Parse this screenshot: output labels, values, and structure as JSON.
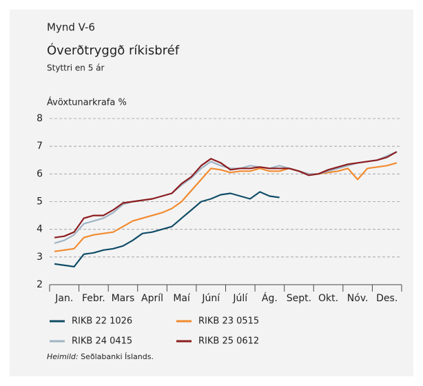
{
  "chart_data": {
    "type": "line",
    "kicker": "Mynd V-6",
    "title": "Óverðtryggð ríkisbréf",
    "subtitle": "Styttri en 5 ár",
    "y_label": "Ávöxtunarkrafa %",
    "source_label": "Heimild:",
    "source": "Seðlabanki Íslands.",
    "categories": [
      null,
      "Jan.",
      null,
      null,
      "Febr.",
      null,
      null,
      "Mars",
      null,
      null,
      "Apríl",
      null,
      null,
      "Maí",
      null,
      null,
      "Júní",
      null,
      null,
      "Júlí",
      null,
      null,
      "Ág.",
      null,
      null,
      "Sept.",
      null,
      null,
      "Okt.",
      null,
      null,
      "Nóv.",
      null,
      null,
      "Des.",
      null
    ],
    "ylim": [
      2,
      8
    ],
    "yticks": [
      2,
      3,
      4,
      5,
      6,
      7,
      8
    ],
    "grid": true,
    "series": [
      {
        "name": "RIKB 22 1026",
        "color": "#0f4c66",
        "values": [
          2.75,
          2.7,
          2.65,
          3.1,
          3.15,
          3.25,
          3.3,
          3.4,
          3.6,
          3.85,
          3.9,
          4.0,
          4.1,
          4.4,
          4.7,
          5.0,
          5.1,
          5.25,
          5.3,
          5.2,
          5.1,
          5.35,
          5.2,
          5.15,
          null,
          null,
          null,
          null,
          null,
          null,
          null,
          null,
          null,
          null,
          null,
          null
        ]
      },
      {
        "name": "RIKB 23 0515",
        "color": "#f28a2e",
        "values": [
          3.2,
          3.25,
          3.3,
          3.7,
          3.8,
          3.85,
          3.9,
          4.1,
          4.3,
          4.4,
          4.5,
          4.6,
          4.75,
          5.0,
          5.4,
          5.8,
          6.2,
          6.15,
          6.05,
          6.1,
          6.1,
          6.2,
          6.1,
          6.1,
          6.2,
          6.1,
          6.0,
          6.0,
          6.05,
          6.1,
          6.2,
          5.8,
          6.2,
          6.25,
          6.3,
          6.4
        ]
      },
      {
        "name": "RIKB 24 0415",
        "color": "#9fb4c4",
        "values": [
          3.5,
          3.6,
          3.8,
          4.2,
          4.3,
          4.4,
          4.6,
          4.9,
          5.0,
          5.05,
          5.1,
          5.2,
          5.3,
          5.6,
          5.85,
          6.2,
          6.45,
          6.3,
          6.2,
          6.2,
          6.3,
          6.25,
          6.2,
          6.3,
          6.2,
          6.1,
          6.0,
          6.0,
          6.1,
          6.2,
          6.3,
          6.4,
          6.45,
          6.5,
          6.65,
          6.8
        ]
      },
      {
        "name": "RIKB 25 0612",
        "color": "#8c1c1f",
        "values": [
          3.7,
          3.75,
          3.9,
          4.4,
          4.5,
          4.5,
          4.7,
          4.95,
          5.0,
          5.05,
          5.1,
          5.2,
          5.3,
          5.65,
          5.9,
          6.3,
          6.55,
          6.4,
          6.15,
          6.2,
          6.2,
          6.25,
          6.2,
          6.2,
          6.2,
          6.1,
          5.95,
          6.0,
          6.15,
          6.25,
          6.35,
          6.4,
          6.45,
          6.5,
          6.6,
          6.8
        ]
      }
    ]
  }
}
